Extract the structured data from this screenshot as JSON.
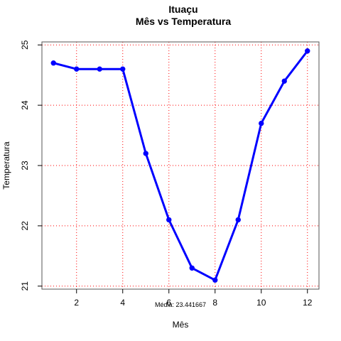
{
  "chart_data": {
    "type": "line",
    "title": "Ituaçu",
    "subtitle": "Mês vs Temperatura",
    "xlabel": "Mês",
    "ylabel": "Temperatura",
    "x": [
      1,
      2,
      3,
      4,
      5,
      6,
      7,
      8,
      9,
      10,
      11,
      12
    ],
    "series": [
      {
        "values": [
          24.7,
          24.6,
          24.6,
          24.6,
          23.2,
          22.1,
          21.3,
          21.1,
          22.1,
          23.7,
          24.4,
          24.9
        ]
      }
    ],
    "xlim": [
      0.5,
      12.5
    ],
    "ylim": [
      20.95,
      25.05
    ],
    "xticks": [
      2,
      4,
      6,
      8,
      10,
      12
    ],
    "yticks": [
      21,
      22,
      23,
      24,
      25
    ],
    "grid": true,
    "annotation": "Média: 23.441667",
    "colors": {
      "line": "#0000ff",
      "grid": "#ff0000",
      "frame": "#000000"
    }
  }
}
